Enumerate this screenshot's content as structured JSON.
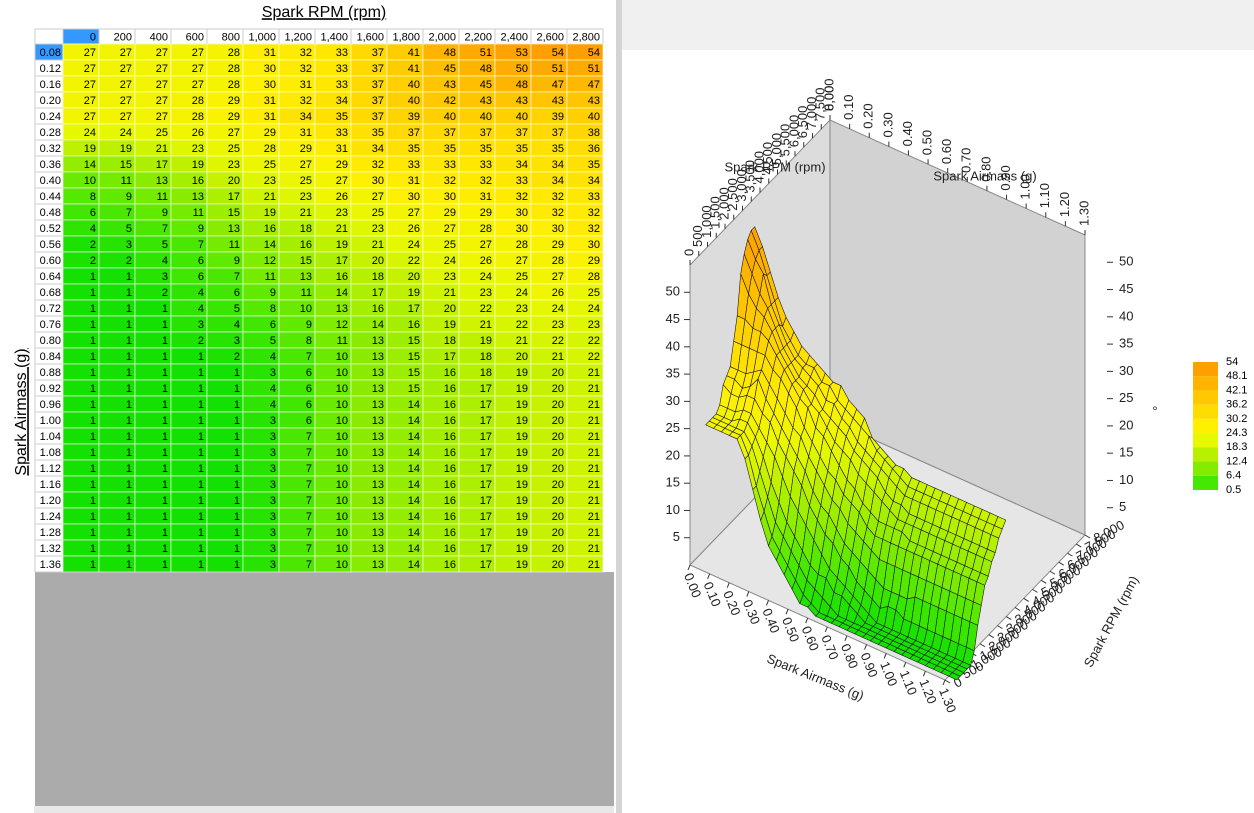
{
  "table": {
    "column_title": "Spark RPM (rpm)",
    "row_title": "Spark Airmass (g)",
    "columns": [
      "0",
      "200",
      "400",
      "600",
      "800",
      "1,000",
      "1,200",
      "1,400",
      "1,600",
      "1,800",
      "2,000",
      "2,200",
      "2,400",
      "2,600",
      "2,800"
    ],
    "rows": [
      {
        "label": "0.08",
        "cells": [
          27,
          27,
          27,
          27,
          28,
          31,
          32,
          33,
          37,
          41,
          48,
          51,
          53,
          54,
          54
        ]
      },
      {
        "label": "0.12",
        "cells": [
          27,
          27,
          27,
          27,
          28,
          30,
          32,
          33,
          37,
          41,
          45,
          48,
          50,
          51,
          51
        ]
      },
      {
        "label": "0.16",
        "cells": [
          27,
          27,
          27,
          27,
          28,
          30,
          31,
          33,
          37,
          40,
          43,
          45,
          48,
          47,
          47
        ]
      },
      {
        "label": "0.20",
        "cells": [
          27,
          27,
          27,
          28,
          29,
          31,
          32,
          34,
          37,
          40,
          42,
          43,
          43,
          43,
          43
        ]
      },
      {
        "label": "0.24",
        "cells": [
          27,
          27,
          27,
          28,
          29,
          31,
          34,
          35,
          37,
          39,
          40,
          40,
          40,
          39,
          40
        ]
      },
      {
        "label": "0.28",
        "cells": [
          24,
          24,
          25,
          26,
          27,
          29,
          31,
          33,
          35,
          37,
          37,
          37,
          37,
          37,
          38
        ]
      },
      {
        "label": "0.32",
        "cells": [
          19,
          19,
          21,
          23,
          25,
          28,
          29,
          31,
          34,
          35,
          35,
          35,
          35,
          35,
          36
        ]
      },
      {
        "label": "0.36",
        "cells": [
          14,
          15,
          17,
          19,
          23,
          25,
          27,
          29,
          32,
          33,
          33,
          33,
          34,
          34,
          35
        ]
      },
      {
        "label": "0.40",
        "cells": [
          10,
          11,
          13,
          16,
          20,
          23,
          25,
          27,
          30,
          31,
          32,
          32,
          33,
          34,
          34
        ]
      },
      {
        "label": "0.44",
        "cells": [
          8,
          9,
          11,
          13,
          17,
          21,
          23,
          26,
          27,
          30,
          30,
          31,
          32,
          32,
          33
        ]
      },
      {
        "label": "0.48",
        "cells": [
          6,
          7,
          9,
          11,
          15,
          19,
          21,
          23,
          25,
          27,
          29,
          29,
          30,
          32,
          32
        ]
      },
      {
        "label": "0.52",
        "cells": [
          4,
          5,
          7,
          9,
          13,
          16,
          18,
          21,
          23,
          26,
          27,
          28,
          30,
          30,
          32
        ]
      },
      {
        "label": "0.56",
        "cells": [
          2,
          3,
          5,
          7,
          11,
          14,
          16,
          19,
          21,
          24,
          25,
          27,
          28,
          29,
          30
        ]
      },
      {
        "label": "0.60",
        "cells": [
          2,
          2,
          4,
          6,
          9,
          12,
          15,
          17,
          20,
          22,
          24,
          26,
          27,
          28,
          29
        ]
      },
      {
        "label": "0.64",
        "cells": [
          1,
          1,
          3,
          6,
          7,
          11,
          13,
          16,
          18,
          20,
          23,
          24,
          25,
          27,
          28
        ]
      },
      {
        "label": "0.68",
        "cells": [
          1,
          1,
          2,
          4,
          6,
          9,
          11,
          14,
          17,
          19,
          21,
          23,
          24,
          26,
          25
        ]
      },
      {
        "label": "0.72",
        "cells": [
          1,
          1,
          1,
          4,
          5,
          8,
          10,
          13,
          16,
          17,
          20,
          22,
          23,
          24,
          24
        ]
      },
      {
        "label": "0.76",
        "cells": [
          1,
          1,
          1,
          3,
          4,
          6,
          9,
          12,
          14,
          16,
          19,
          21,
          22,
          23,
          23
        ]
      },
      {
        "label": "0.80",
        "cells": [
          1,
          1,
          1,
          2,
          3,
          5,
          8,
          11,
          13,
          15,
          18,
          19,
          21,
          22,
          22
        ]
      },
      {
        "label": "0.84",
        "cells": [
          1,
          1,
          1,
          1,
          2,
          4,
          7,
          10,
          13,
          15,
          17,
          18,
          20,
          21,
          22
        ]
      },
      {
        "label": "0.88",
        "cells": [
          1,
          1,
          1,
          1,
          1,
          3,
          6,
          10,
          13,
          15,
          16,
          18,
          19,
          20,
          21
        ]
      },
      {
        "label": "0.92",
        "cells": [
          1,
          1,
          1,
          1,
          1,
          4,
          6,
          10,
          13,
          15,
          16,
          17,
          19,
          20,
          21
        ]
      },
      {
        "label": "0.96",
        "cells": [
          1,
          1,
          1,
          1,
          1,
          4,
          6,
          10,
          13,
          14,
          16,
          17,
          19,
          20,
          21
        ]
      },
      {
        "label": "1.00",
        "cells": [
          1,
          1,
          1,
          1,
          1,
          3,
          6,
          10,
          13,
          14,
          16,
          17,
          19,
          20,
          21
        ]
      },
      {
        "label": "1.04",
        "cells": [
          1,
          1,
          1,
          1,
          1,
          3,
          7,
          10,
          13,
          14,
          16,
          17,
          19,
          20,
          21
        ]
      },
      {
        "label": "1.08",
        "cells": [
          1,
          1,
          1,
          1,
          1,
          3,
          7,
          10,
          13,
          14,
          16,
          17,
          19,
          20,
          21
        ]
      },
      {
        "label": "1.12",
        "cells": [
          1,
          1,
          1,
          1,
          1,
          3,
          7,
          10,
          13,
          14,
          16,
          17,
          19,
          20,
          21
        ]
      },
      {
        "label": "1.16",
        "cells": [
          1,
          1,
          1,
          1,
          1,
          3,
          7,
          10,
          13,
          14,
          16,
          17,
          19,
          20,
          21
        ]
      },
      {
        "label": "1.20",
        "cells": [
          1,
          1,
          1,
          1,
          1,
          3,
          7,
          10,
          13,
          14,
          16,
          17,
          19,
          20,
          21
        ]
      },
      {
        "label": "1.24",
        "cells": [
          1,
          1,
          1,
          1,
          1,
          3,
          7,
          10,
          13,
          14,
          16,
          17,
          19,
          20,
          21
        ]
      },
      {
        "label": "1.28",
        "cells": [
          1,
          1,
          1,
          1,
          1,
          3,
          7,
          10,
          13,
          14,
          16,
          17,
          19,
          20,
          21
        ]
      },
      {
        "label": "1.32",
        "cells": [
          1,
          1,
          1,
          1,
          1,
          3,
          7,
          10,
          13,
          14,
          16,
          17,
          19,
          20,
          21
        ]
      },
      {
        "label": "1.36",
        "cells": [
          1,
          1,
          1,
          1,
          1,
          3,
          7,
          10,
          13,
          14,
          16,
          17,
          19,
          20,
          21
        ]
      }
    ]
  },
  "chart3d": {
    "rpm_title": "Spark RPM (rpm)",
    "airmass_title": "Spark Airmass (g)",
    "z_label": "°",
    "rpm_lim": [
      0,
      8000
    ],
    "airmass_lim": [
      0,
      1.3
    ],
    "zlim": [
      0,
      55
    ],
    "rpm_ticks": [
      0,
      500,
      {
        "value": 1000,
        "label": "1,000"
      },
      {
        "value": 1500,
        "label": "1,500"
      },
      {
        "value": 2000,
        "label": "2,000"
      },
      {
        "value": 2500,
        "label": "2,500"
      },
      {
        "value": 3000,
        "label": "3,000"
      },
      {
        "value": 3500,
        "label": "3,500"
      },
      {
        "value": 4000,
        "label": "4,000"
      },
      {
        "value": 4500,
        "label": "4,500"
      },
      {
        "value": 5000,
        "label": "5,000"
      },
      {
        "value": 5500,
        "label": "5,500"
      },
      {
        "value": 6000,
        "label": "6,000"
      },
      {
        "value": 6500,
        "label": "6,500"
      },
      {
        "value": 7000,
        "label": "7,000"
      },
      {
        "value": 7500,
        "label": "7,500"
      },
      {
        "value": 8000,
        "label": "8,000"
      }
    ],
    "airmass_ticks": [
      {
        "value": 0,
        "label": "0.00"
      },
      {
        "value": 0.1,
        "label": "0.10"
      },
      {
        "value": 0.2,
        "label": "0.20"
      },
      {
        "value": 0.3,
        "label": "0.30"
      },
      {
        "value": 0.4,
        "label": "0.40"
      },
      {
        "value": 0.5,
        "label": "0.50"
      },
      {
        "value": 0.6,
        "label": "0.60"
      },
      {
        "value": 0.7,
        "label": "0.70"
      },
      {
        "value": 0.8,
        "label": "0.80"
      },
      {
        "value": 0.9,
        "label": "0.90"
      },
      {
        "value": 1,
        "label": "1.00"
      },
      {
        "value": 1.1,
        "label": "1.10"
      },
      {
        "value": 1.2,
        "label": "1.20"
      },
      {
        "value": 1.3,
        "label": "1.30"
      }
    ],
    "zticks": [
      5,
      10,
      15,
      20,
      25,
      30,
      35,
      40,
      45,
      50
    ],
    "legend": {
      "values": [
        54,
        48.1,
        42.1,
        36.2,
        30.2,
        24.3,
        18.3,
        12.4,
        6.4,
        0.5
      ],
      "colors": [
        "#ffa000",
        "#ffb400",
        "#ffc800",
        "#ffdc00",
        "#fff000",
        "#e8f800",
        "#b8f000",
        "#84ec00",
        "#44e800",
        "#10e000"
      ]
    }
  }
}
